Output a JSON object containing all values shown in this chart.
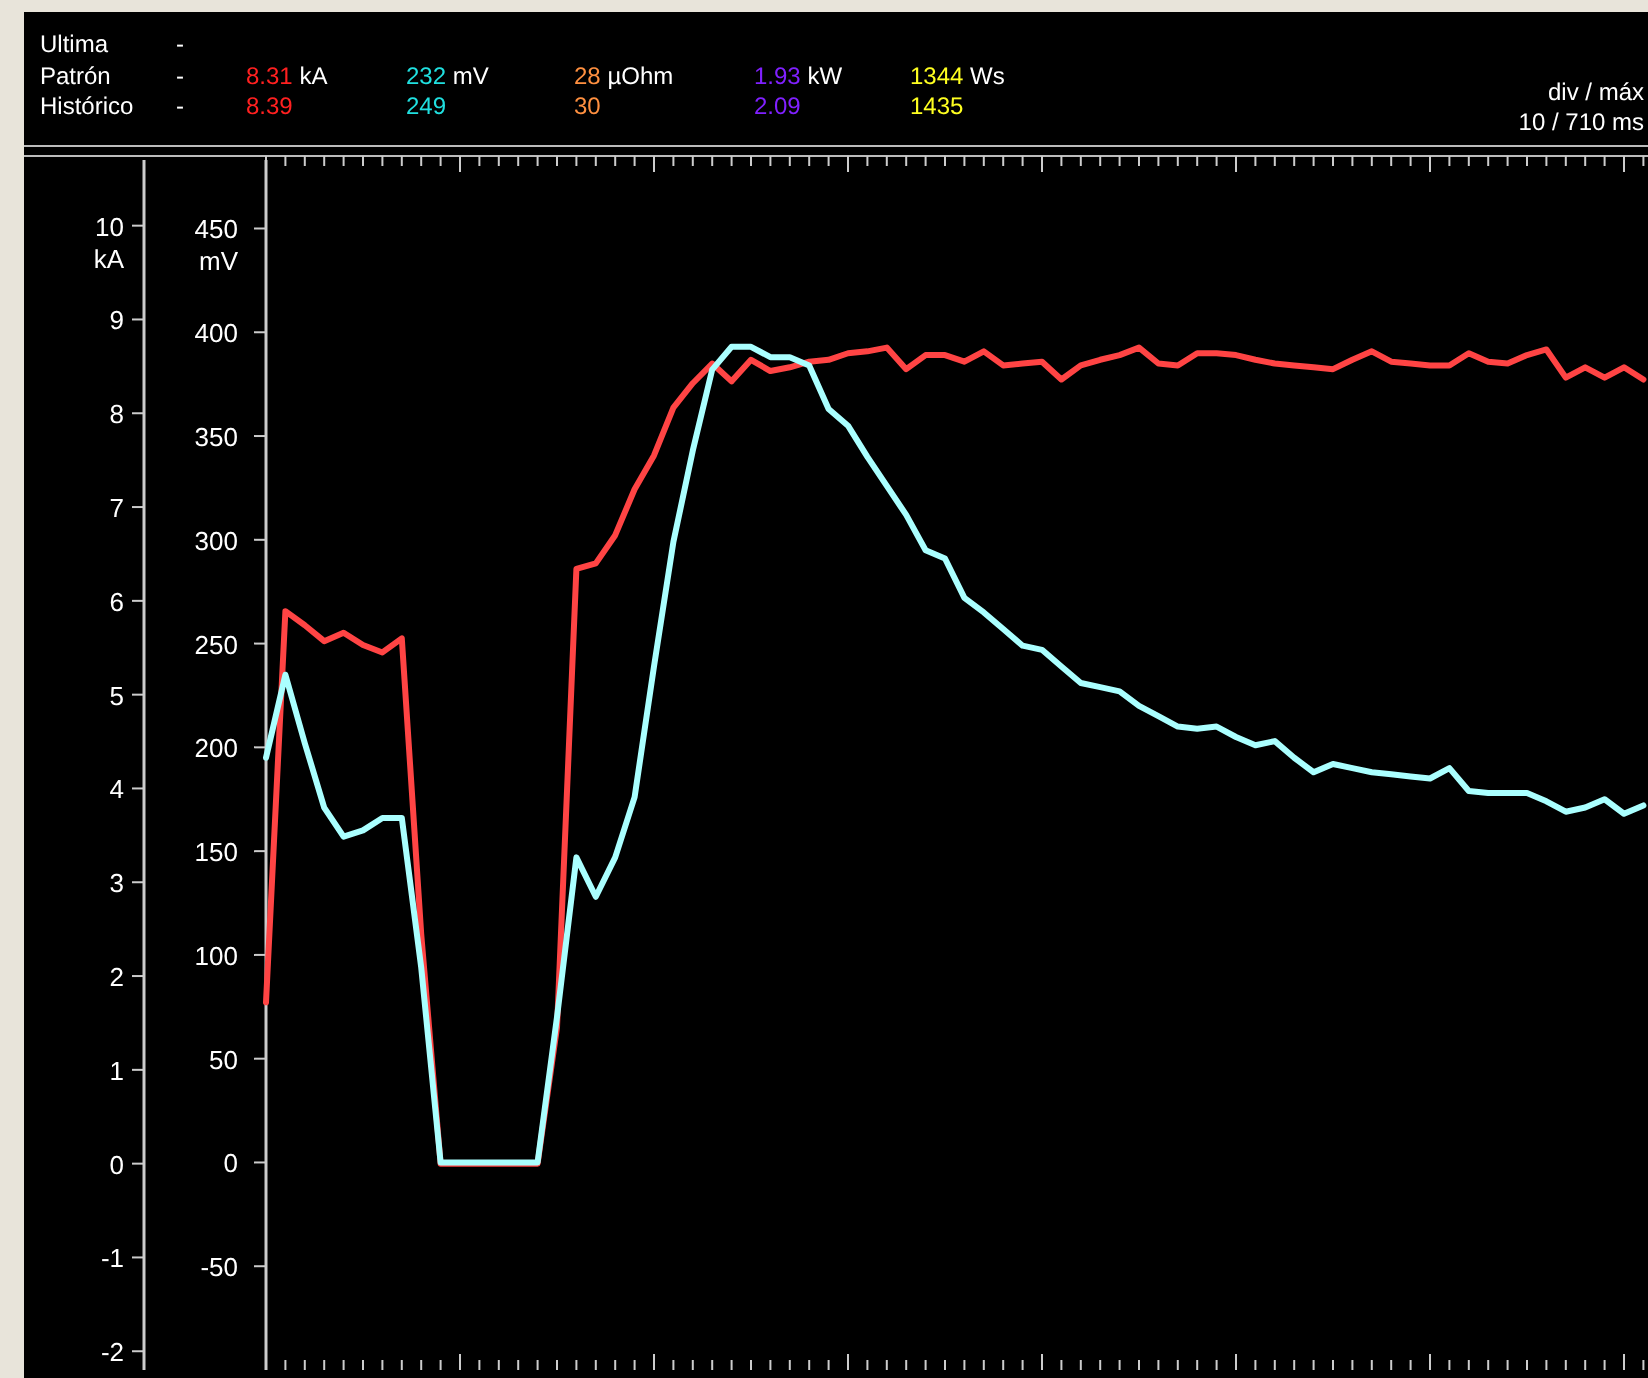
{
  "chart_data": {
    "type": "line",
    "ylabel": "kA",
    "y2label": "mV",
    "annotations": [
      "Ultima -",
      "Patrón -",
      "8.31 kA",
      "232 mV",
      "28 µOhm",
      "1.93 kW",
      "1344 Ws",
      "Histórico -",
      "8.39",
      "249",
      "30",
      "2.09",
      "1435",
      "div / máx",
      "10 / 710 ms"
    ],
    "categories": [
      null,
      null,
      null,
      null,
      null,
      null,
      null,
      null,
      null,
      null,
      null,
      null,
      null,
      null,
      null,
      null,
      null,
      null,
      null,
      null,
      null,
      null,
      null,
      null,
      null,
      null,
      null,
      null,
      null,
      null,
      null,
      null,
      null,
      null,
      null,
      null,
      null,
      null,
      null,
      null,
      null,
      null,
      null,
      null,
      null,
      null,
      null,
      null,
      null,
      null,
      null,
      null,
      null,
      null,
      null,
      null,
      null,
      null,
      null,
      null,
      null,
      null,
      null,
      null,
      null,
      null,
      null,
      null,
      null,
      null,
      null,
      null
    ],
    "series": [
      {
        "color": "#ff4444",
        "values": [
          1.72,
          5.89,
          5.74,
          5.57,
          5.66,
          5.53,
          5.45,
          5.6,
          2.45,
          0,
          0,
          0,
          0,
          0,
          0,
          1.45,
          6.34,
          6.4,
          6.7,
          7.19,
          7.55,
          8.06,
          8.32,
          8.53,
          8.34,
          8.57,
          8.45,
          8.49,
          8.55,
          8.57,
          8.64,
          8.66,
          8.7,
          8.47,
          8.62,
          8.62,
          8.55,
          8.66,
          8.51,
          8.53,
          8.55,
          8.36,
          8.51,
          8.57,
          8.62,
          8.7,
          8.53,
          8.51,
          8.64,
          8.64,
          8.62,
          8.57,
          8.53,
          8.51,
          8.49,
          8.47,
          8.57,
          8.66,
          8.55,
          8.53,
          8.51,
          8.51,
          8.64,
          8.55,
          8.53,
          8.62,
          8.68,
          8.38,
          8.49,
          8.38,
          8.49,
          8.36
        ]
      },
      {
        "color": "#aaffff",
        "axis": "y2",
        "values": [
          195,
          235,
          202,
          171,
          157,
          160,
          166,
          166,
          94,
          0,
          0,
          0,
          0,
          0,
          0,
          70,
          147,
          128,
          147,
          176,
          239,
          299,
          343,
          382,
          393,
          393,
          388,
          388,
          384,
          363,
          355,
          340,
          326,
          312,
          295,
          291,
          272,
          265,
          257,
          249,
          247,
          239,
          231,
          229,
          227,
          220,
          215,
          210,
          209,
          210,
          205,
          201,
          203,
          195,
          188,
          192,
          190,
          188,
          187,
          186,
          185,
          190,
          179,
          178,
          178,
          178,
          174,
          169,
          171,
          175,
          168,
          172
        ]
      }
    ],
    "ylim": [
      -2.2,
      10.7
    ],
    "yticks": [
      -2,
      -1,
      0,
      1,
      2,
      3,
      4,
      5,
      6,
      7,
      8,
      9,
      10
    ],
    "y2lim": [
      -100,
      483
    ],
    "y2ticks": [
      -50,
      0,
      50,
      100,
      150,
      200,
      250,
      300,
      350,
      400,
      450
    ]
  }
}
